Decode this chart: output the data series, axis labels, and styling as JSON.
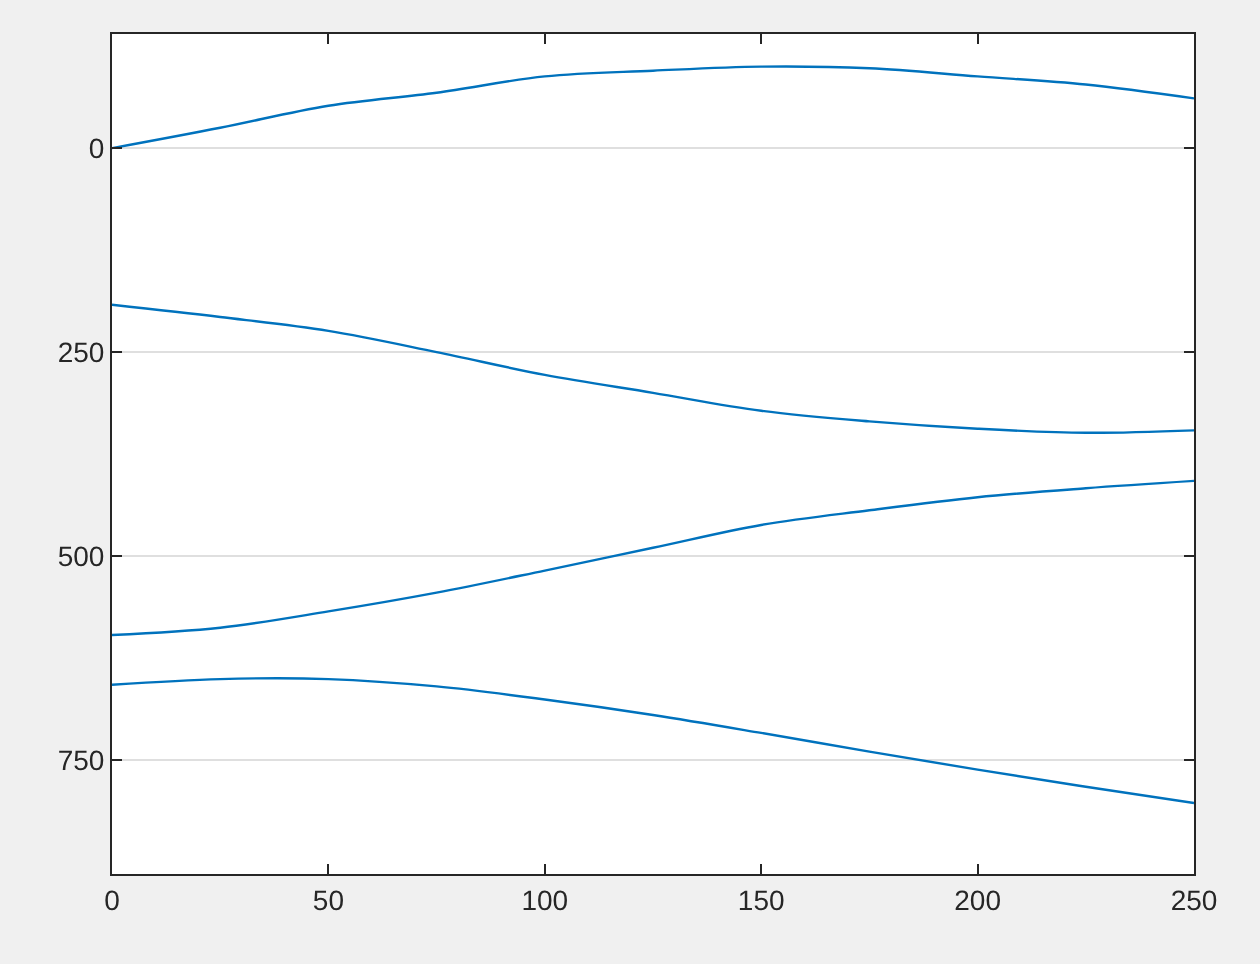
{
  "chart_data": {
    "type": "line",
    "x": [
      0,
      25,
      50,
      75,
      100,
      125,
      150,
      175,
      200,
      225,
      250
    ],
    "series": [
      {
        "color": "#0072bd",
        "values": [
          0,
          -25,
          -52,
          -68,
          -88,
          -95,
          -100,
          -98,
          -88,
          -78,
          -61
        ]
      },
      {
        "color": "#0072bd",
        "values": [
          192,
          207,
          224,
          250,
          278,
          300,
          322,
          335,
          344,
          349,
          346
        ]
      },
      {
        "color": "#0072bd",
        "values": [
          597,
          588,
          568,
          545,
          518,
          490,
          462,
          444,
          428,
          417,
          408
        ]
      },
      {
        "color": "#0072bd",
        "values": [
          658,
          651,
          651,
          660,
          676,
          695,
          717,
          740,
          762,
          783,
          803
        ]
      }
    ],
    "xlim": [
      0,
      250
    ],
    "xticks": [
      0,
      50,
      100,
      150,
      200,
      250
    ],
    "ylim": [
      890,
      -140
    ],
    "yticks": [
      0,
      250,
      500,
      750
    ],
    "grid": "y",
    "marker": "none",
    "line_style": "solid"
  }
}
